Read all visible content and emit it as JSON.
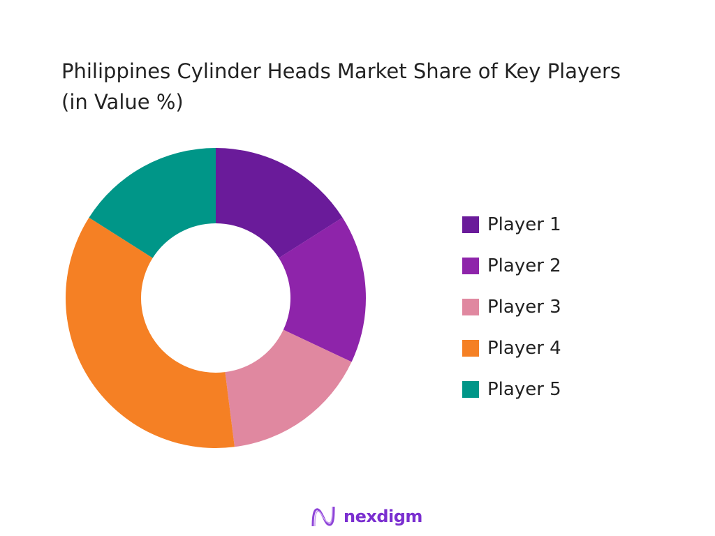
{
  "chart_data": {
    "type": "pie",
    "variant": "donut",
    "title": "Philippines Cylinder Heads Market Share of Key Players (in Value %)",
    "categories": [
      "Player 1",
      "Player 2",
      "Player 3",
      "Player 4",
      "Player 5"
    ],
    "values": [
      16,
      16,
      16,
      36,
      16
    ],
    "unit": "%",
    "colors": [
      "#6a1b9a",
      "#8e24aa",
      "#e088a0",
      "#f58024",
      "#009688"
    ],
    "legend_position": "right"
  },
  "logo": {
    "text": "nexdigm"
  }
}
